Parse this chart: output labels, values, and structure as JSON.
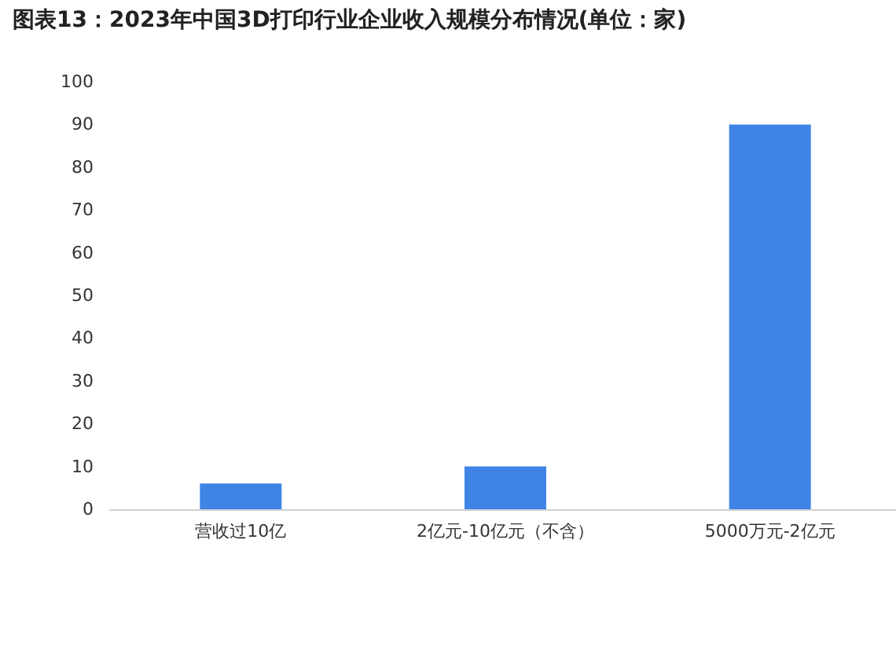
{
  "chart_data": {
    "type": "bar",
    "title": "图表13：2023年中国3D打印行业企业收入规模分布情况(单位：家)",
    "categories": [
      "营收过10亿",
      "2亿元-10亿元（不含）",
      "5000万元-2亿元"
    ],
    "values": [
      6,
      10,
      90
    ],
    "color": "#3f84e5",
    "ylim": [
      0,
      100
    ],
    "yticks": [
      0,
      10,
      20,
      30,
      40,
      50,
      60,
      70,
      80,
      90,
      100
    ],
    "grid": false
  }
}
